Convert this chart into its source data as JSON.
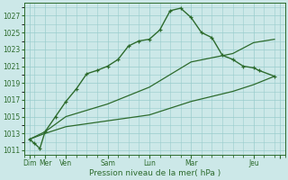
{
  "bg_color": "#cce8e8",
  "grid_color": "#99cccc",
  "line_color": "#2d6b2d",
  "xlabel": "Pression niveau de la mer( hPa )",
  "ylim": [
    1010.5,
    1028.5
  ],
  "yticks": [
    1011,
    1013,
    1015,
    1017,
    1019,
    1021,
    1023,
    1025,
    1027
  ],
  "xlim": [
    0,
    25
  ],
  "xtick_positions": [
    0.5,
    2,
    4,
    8,
    12,
    16,
    22,
    24.5
  ],
  "xtick_labels": [
    "Dim",
    "Mer",
    "Ven",
    "Sam",
    "Lun",
    "Mar",
    "Jeu",
    ""
  ],
  "series1_x": [
    0.5,
    1,
    1.5,
    2,
    3,
    4,
    5,
    6,
    7,
    8,
    9,
    10,
    11,
    12,
    13,
    14,
    15,
    16,
    17,
    18,
    19,
    20,
    21,
    22,
    22.5,
    24
  ],
  "series1_y": [
    1012.3,
    1011.8,
    1011.2,
    1013.2,
    1015.0,
    1016.8,
    1018.3,
    1020.1,
    1020.5,
    1021.0,
    1021.8,
    1023.4,
    1024.0,
    1024.2,
    1025.3,
    1027.6,
    1027.9,
    1026.8,
    1025.0,
    1024.4,
    1022.3,
    1021.8,
    1021.0,
    1020.8,
    1020.5,
    1019.8
  ],
  "series2_x": [
    0.5,
    2,
    4,
    8,
    12,
    16,
    20,
    22,
    24
  ],
  "series2_y": [
    1012.3,
    1013.2,
    1015.0,
    1016.5,
    1018.5,
    1021.5,
    1022.5,
    1023.8,
    1024.2
  ],
  "series3_x": [
    0.5,
    2,
    4,
    8,
    12,
    16,
    20,
    22,
    24
  ],
  "series3_y": [
    1012.3,
    1013.0,
    1013.8,
    1014.5,
    1015.2,
    1016.8,
    1018.0,
    1018.8,
    1019.8
  ]
}
